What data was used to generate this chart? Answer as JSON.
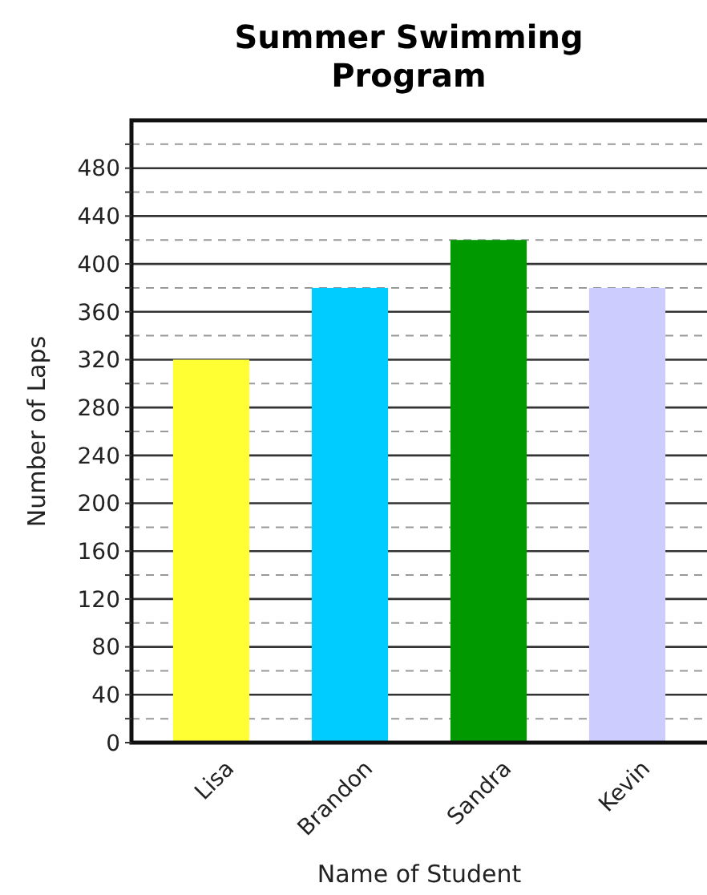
{
  "chart_data": {
    "type": "bar",
    "title": "Summer Swimming Program",
    "xlabel": "Name of Student",
    "ylabel": "Number of Laps",
    "categories": [
      "Lisa",
      "Brandon",
      "Sandra",
      "Kevin"
    ],
    "values": [
      320,
      380,
      420,
      380
    ],
    "colors": [
      "#ffff33",
      "#00ccff",
      "#009900",
      "#ccccff"
    ],
    "ylim": [
      0,
      520
    ],
    "yticks": [
      0,
      {
        "value": 20,
        "label": null
      },
      40,
      {
        "value": 60,
        "label": null
      },
      80,
      {
        "value": 100,
        "label": null
      },
      120,
      {
        "value": 140,
        "label": null
      },
      160,
      {
        "value": 180,
        "label": null
      },
      200,
      {
        "value": 220,
        "label": null
      },
      240,
      {
        "value": 260,
        "label": null
      },
      280,
      {
        "value": 300,
        "label": null
      },
      320,
      {
        "value": 340,
        "label": null
      },
      360,
      {
        "value": 380,
        "label": null
      },
      400,
      {
        "value": 420,
        "label": null
      },
      440,
      {
        "value": 460,
        "label": null
      },
      480,
      {
        "value": 500,
        "label": null
      }
    ],
    "grid": true
  }
}
